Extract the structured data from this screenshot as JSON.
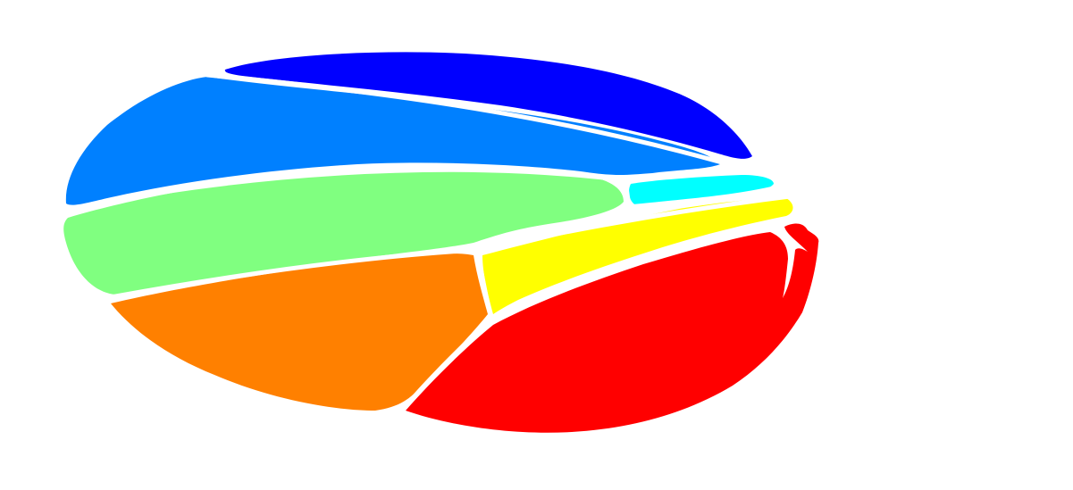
{
  "figure": {
    "background_color": "#ffffff",
    "description_visible_text": "",
    "regions": [
      {
        "id": "dark-blue",
        "color": "#0000ff"
      },
      {
        "id": "medium-blue",
        "color": "#0080ff"
      },
      {
        "id": "cyan",
        "color": "#00ffff"
      },
      {
        "id": "light-green",
        "color": "#80ff80"
      },
      {
        "id": "yellow",
        "color": "#ffff00"
      },
      {
        "id": "orange",
        "color": "#ff8000"
      },
      {
        "id": "red",
        "color": "#ff0000"
      }
    ]
  }
}
